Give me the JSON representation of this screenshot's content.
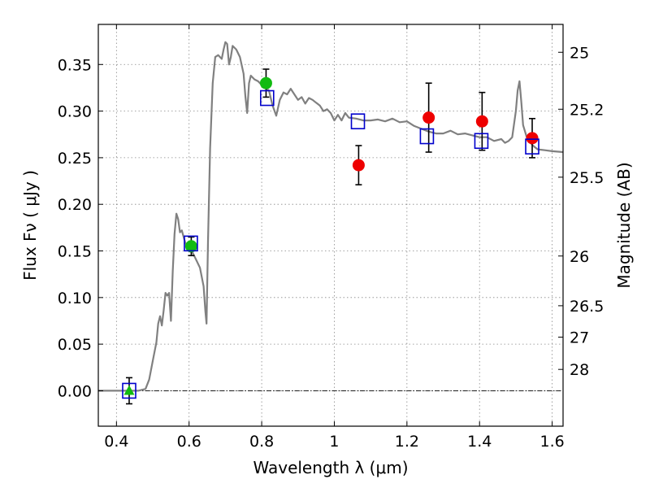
{
  "chart_data": {
    "type": "scatter",
    "xlabel": "Wavelength  λ (μm)",
    "ylabel": "Flux  Fν  ( μJy )",
    "y2label": "Magnitude (AB)",
    "xlim": [
      0.35,
      1.63
    ],
    "ylim": [
      -0.038,
      0.393
    ],
    "x_ticks": [
      {
        "value": 0.4,
        "label": "0.4"
      },
      {
        "value": 0.6,
        "label": "0.6"
      },
      {
        "value": 0.8,
        "label": "0.8"
      },
      {
        "value": 1.0,
        "label": "1"
      },
      {
        "value": 1.2,
        "label": "1.2"
      },
      {
        "value": 1.4,
        "label": "1.4"
      },
      {
        "value": 1.6,
        "label": "1.6"
      }
    ],
    "y_ticks": [
      {
        "value": 0.0,
        "label": "0.00"
      },
      {
        "value": 0.05,
        "label": "0.05"
      },
      {
        "value": 0.1,
        "label": "0.10"
      },
      {
        "value": 0.15,
        "label": "0.15"
      },
      {
        "value": 0.2,
        "label": "0.20"
      },
      {
        "value": 0.25,
        "label": "0.25"
      },
      {
        "value": 0.3,
        "label": "0.30"
      },
      {
        "value": 0.35,
        "label": "0.35"
      }
    ],
    "mag_ticks": [
      {
        "mag": 25,
        "label": "25"
      },
      {
        "mag": 25.2,
        "label": "25.2"
      },
      {
        "mag": 25.5,
        "label": "25.5"
      },
      {
        "mag": 26,
        "label": "26"
      },
      {
        "mag": 26.5,
        "label": "26.5"
      },
      {
        "mag": 27,
        "label": "27"
      },
      {
        "mag": 28,
        "label": "28"
      }
    ],
    "grid": true,
    "zero_line": true,
    "colors": {
      "model": "#808080",
      "model_photometry": "#0000cc",
      "green_points": "#11bb11",
      "red_points": "#ee0000",
      "errorbar": "#000000"
    },
    "series": [
      {
        "role": "model_spectrum",
        "kind": "line",
        "points": [
          [
            0.35,
            0.0
          ],
          [
            0.46,
            0.0
          ],
          [
            0.48,
            0.002
          ],
          [
            0.49,
            0.012
          ],
          [
            0.5,
            0.032
          ],
          [
            0.51,
            0.052
          ],
          [
            0.515,
            0.072
          ],
          [
            0.52,
            0.08
          ],
          [
            0.525,
            0.07
          ],
          [
            0.53,
            0.086
          ],
          [
            0.535,
            0.105
          ],
          [
            0.54,
            0.102
          ],
          [
            0.545,
            0.105
          ],
          [
            0.55,
            0.075
          ],
          [
            0.555,
            0.128
          ],
          [
            0.56,
            0.168
          ],
          [
            0.565,
            0.19
          ],
          [
            0.57,
            0.184
          ],
          [
            0.575,
            0.17
          ],
          [
            0.58,
            0.172
          ],
          [
            0.585,
            0.165
          ],
          [
            0.59,
            0.158
          ],
          [
            0.595,
            0.156
          ],
          [
            0.6,
            0.15
          ],
          [
            0.61,
            0.148
          ],
          [
            0.62,
            0.14
          ],
          [
            0.63,
            0.132
          ],
          [
            0.64,
            0.112
          ],
          [
            0.645,
            0.085
          ],
          [
            0.648,
            0.072
          ],
          [
            0.652,
            0.16
          ],
          [
            0.658,
            0.26
          ],
          [
            0.665,
            0.33
          ],
          [
            0.672,
            0.358
          ],
          [
            0.68,
            0.36
          ],
          [
            0.69,
            0.356
          ],
          [
            0.695,
            0.366
          ],
          [
            0.7,
            0.374
          ],
          [
            0.705,
            0.372
          ],
          [
            0.71,
            0.35
          ],
          [
            0.715,
            0.358
          ],
          [
            0.72,
            0.37
          ],
          [
            0.73,
            0.366
          ],
          [
            0.74,
            0.358
          ],
          [
            0.75,
            0.34
          ],
          [
            0.755,
            0.316
          ],
          [
            0.76,
            0.298
          ],
          [
            0.765,
            0.33
          ],
          [
            0.77,
            0.338
          ],
          [
            0.78,
            0.334
          ],
          [
            0.79,
            0.332
          ],
          [
            0.8,
            0.328
          ],
          [
            0.81,
            0.325
          ],
          [
            0.82,
            0.322
          ],
          [
            0.83,
            0.306
          ],
          [
            0.84,
            0.295
          ],
          [
            0.85,
            0.312
          ],
          [
            0.86,
            0.32
          ],
          [
            0.87,
            0.318
          ],
          [
            0.88,
            0.324
          ],
          [
            0.89,
            0.318
          ],
          [
            0.9,
            0.312
          ],
          [
            0.91,
            0.315
          ],
          [
            0.92,
            0.308
          ],
          [
            0.93,
            0.314
          ],
          [
            0.94,
            0.312
          ],
          [
            0.95,
            0.309
          ],
          [
            0.96,
            0.306
          ],
          [
            0.97,
            0.3
          ],
          [
            0.98,
            0.302
          ],
          [
            0.99,
            0.298
          ],
          [
            1.0,
            0.29
          ],
          [
            1.01,
            0.296
          ],
          [
            1.02,
            0.29
          ],
          [
            1.03,
            0.298
          ],
          [
            1.04,
            0.293
          ],
          [
            1.06,
            0.292
          ],
          [
            1.08,
            0.29
          ],
          [
            1.1,
            0.29
          ],
          [
            1.12,
            0.291
          ],
          [
            1.14,
            0.289
          ],
          [
            1.16,
            0.292
          ],
          [
            1.18,
            0.288
          ],
          [
            1.2,
            0.289
          ],
          [
            1.22,
            0.284
          ],
          [
            1.24,
            0.281
          ],
          [
            1.26,
            0.278
          ],
          [
            1.28,
            0.276
          ],
          [
            1.3,
            0.276
          ],
          [
            1.32,
            0.279
          ],
          [
            1.34,
            0.275
          ],
          [
            1.36,
            0.276
          ],
          [
            1.38,
            0.274
          ],
          [
            1.4,
            0.272
          ],
          [
            1.42,
            0.272
          ],
          [
            1.44,
            0.268
          ],
          [
            1.46,
            0.27
          ],
          [
            1.47,
            0.266
          ],
          [
            1.48,
            0.268
          ],
          [
            1.49,
            0.272
          ],
          [
            1.5,
            0.3
          ],
          [
            1.505,
            0.322
          ],
          [
            1.51,
            0.332
          ],
          [
            1.515,
            0.31
          ],
          [
            1.52,
            0.285
          ],
          [
            1.53,
            0.272
          ],
          [
            1.54,
            0.266
          ],
          [
            1.55,
            0.262
          ],
          [
            1.56,
            0.259
          ],
          [
            1.58,
            0.258
          ],
          [
            1.6,
            0.257
          ],
          [
            1.63,
            0.256
          ]
        ]
      },
      {
        "role": "model_photometry",
        "kind": "open_square",
        "points": [
          {
            "x": 0.435,
            "y": 0.0
          },
          {
            "x": 0.605,
            "y": 0.158
          },
          {
            "x": 0.815,
            "y": 0.314
          },
          {
            "x": 1.065,
            "y": 0.289
          },
          {
            "x": 1.255,
            "y": 0.273
          },
          {
            "x": 1.405,
            "y": 0.268
          },
          {
            "x": 1.545,
            "y": 0.262
          }
        ]
      },
      {
        "role": "observed_green",
        "kind": "filled_circle",
        "points": [
          {
            "x": 0.606,
            "y": 0.155,
            "yerr": 0.01
          },
          {
            "x": 0.812,
            "y": 0.33,
            "yerr": 0.015
          }
        ]
      },
      {
        "role": "observed_green_upper",
        "kind": "filled_triangle",
        "points": [
          {
            "x": 0.435,
            "y": 0.0,
            "yerr": 0.014
          }
        ]
      },
      {
        "role": "observed_red",
        "kind": "filled_circle",
        "points": [
          {
            "x": 1.067,
            "y": 0.242,
            "yerr": 0.021
          },
          {
            "x": 1.26,
            "y": 0.293,
            "yerr": 0.037
          },
          {
            "x": 1.407,
            "y": 0.289,
            "yerr": 0.031
          },
          {
            "x": 1.545,
            "y": 0.271,
            "yerr": 0.021
          }
        ]
      }
    ]
  }
}
